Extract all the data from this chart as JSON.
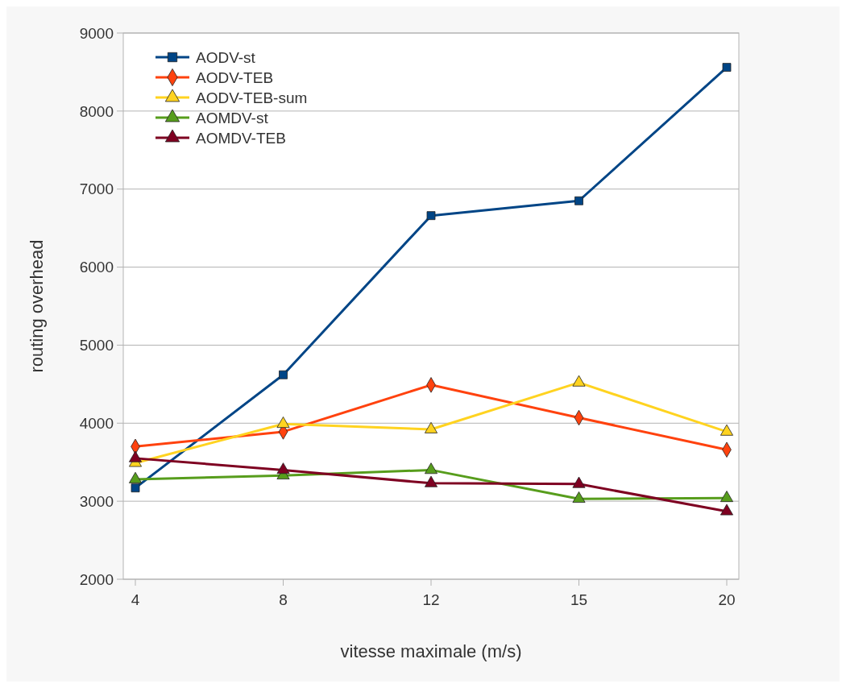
{
  "chart_data": {
    "type": "line",
    "xlabel": "vitesse maximale (m/s)",
    "ylabel": "routing overhead",
    "categories": [
      "4",
      "8",
      "12",
      "15",
      "20"
    ],
    "ylim": [
      2000,
      9000
    ],
    "yticks": [
      2000,
      3000,
      4000,
      5000,
      6000,
      7000,
      8000,
      9000
    ],
    "grid": "y",
    "legend": "top left",
    "line_style": "solid",
    "series": [
      {
        "name": "AODV-st",
        "color": "#004586",
        "marker": "square",
        "values": [
          3170,
          4620,
          6660,
          6850,
          8560
        ]
      },
      {
        "name": "AODV-TEB",
        "color": "#ff420e",
        "marker": "diamond",
        "values": [
          3700,
          3890,
          4490,
          4070,
          3660
        ]
      },
      {
        "name": "AODV-TEB-sum",
        "color": "#ffd320",
        "marker": "triangle",
        "values": [
          3490,
          3990,
          3920,
          4520,
          3890
        ]
      },
      {
        "name": "AOMDV-st",
        "color": "#579d1c",
        "marker": "triangle",
        "values": [
          3280,
          3330,
          3400,
          3030,
          3040
        ]
      },
      {
        "name": "AOMDV-TEB",
        "color": "#7e0021",
        "marker": "triangle",
        "values": [
          3550,
          3400,
          3230,
          3220,
          2870
        ]
      }
    ]
  }
}
